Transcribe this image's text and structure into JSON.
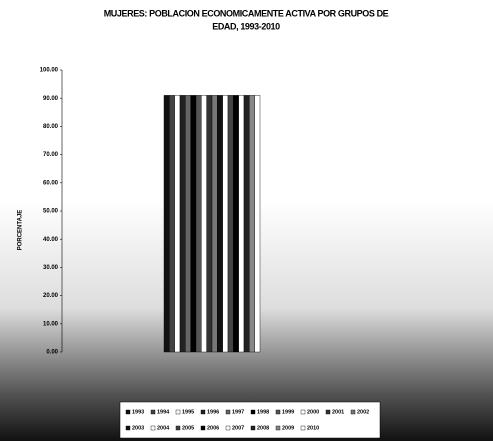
{
  "chart_data": {
    "type": "bar",
    "title_lines": [
      "MUJERES: POBLACION ECONOMICAMENTE ACTIVA POR GRUPOS DE",
      "EDAD, 1993-2010"
    ],
    "y_label": "PORCENTAJE",
    "categories": [
      null
    ],
    "series": [
      {
        "name": "1993",
        "color": "#111111",
        "values": [
          91
        ]
      },
      {
        "name": "1994",
        "color": "#444444",
        "values": [
          91
        ]
      },
      {
        "name": "1995",
        "color": "#ffffff",
        "values": [
          91
        ]
      },
      {
        "name": "1996",
        "color": "#222222",
        "values": [
          91
        ]
      },
      {
        "name": "1997",
        "color": "#666666",
        "values": [
          91
        ]
      },
      {
        "name": "1998",
        "color": "#000000",
        "values": [
          91
        ]
      },
      {
        "name": "1999",
        "color": "#555555",
        "values": [
          91
        ]
      },
      {
        "name": "2000",
        "color": "#ffffff",
        "values": [
          91
        ]
      },
      {
        "name": "2001",
        "color": "#333333",
        "values": [
          91
        ]
      },
      {
        "name": "2002",
        "color": "#777777",
        "values": [
          91
        ]
      },
      {
        "name": "2003",
        "color": "#111111",
        "values": [
          91
        ]
      },
      {
        "name": "2004",
        "color": "#ffffff",
        "values": [
          91
        ]
      },
      {
        "name": "2005",
        "color": "#444444",
        "values": [
          91
        ]
      },
      {
        "name": "2006",
        "color": "#000000",
        "values": [
          91
        ]
      },
      {
        "name": "2007",
        "color": "#ffffff",
        "values": [
          91
        ]
      },
      {
        "name": "2008",
        "color": "#222222",
        "values": [
          91
        ]
      },
      {
        "name": "2009",
        "color": "#888888",
        "values": [
          91
        ]
      },
      {
        "name": "2010",
        "color": "#ffffff",
        "values": [
          91
        ]
      }
    ],
    "ylim": [
      0,
      100
    ],
    "yticks": [
      {
        "value": 0,
        "label": "0.00"
      },
      {
        "value": 10,
        "label": "10.00"
      },
      {
        "value": 20,
        "label": "20.00"
      },
      {
        "value": 30,
        "label": "30.00"
      },
      {
        "value": 40,
        "label": "40.00"
      },
      {
        "value": 50,
        "label": "50.00"
      },
      {
        "value": 60,
        "label": "60.00"
      },
      {
        "value": 70,
        "label": "70.00"
      },
      {
        "value": 80,
        "label": "80.00"
      },
      {
        "value": 90,
        "label": "90.00"
      },
      {
        "value": 100,
        "label": "100.00"
      }
    ]
  }
}
